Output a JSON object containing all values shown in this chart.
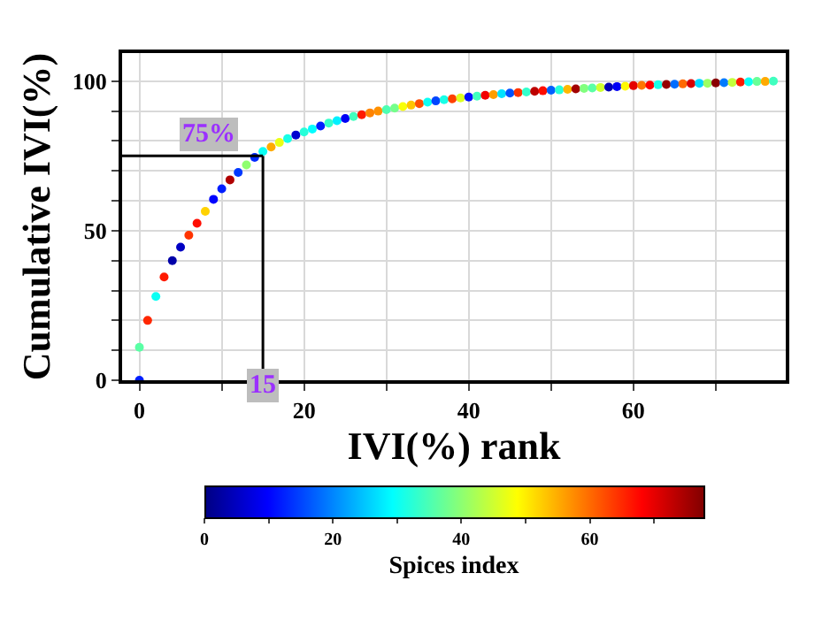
{
  "chart_data": {
    "type": "scatter",
    "xlabel": "IVI(%) rank",
    "ylabel": "Cumulative IVI(%)",
    "clabel": "Spices index",
    "x": [
      0,
      0,
      1,
      2,
      3,
      4,
      5,
      6,
      7,
      8,
      9,
      10,
      11,
      12,
      13,
      14,
      15,
      16,
      17,
      18,
      19,
      20,
      21,
      22,
      23,
      24,
      25,
      26,
      27,
      28,
      29,
      30,
      31,
      32,
      33,
      34,
      35,
      36,
      37,
      38,
      39,
      40,
      41,
      42,
      43,
      44,
      45,
      46,
      47,
      48,
      49,
      50,
      51,
      52,
      53,
      54,
      55,
      56,
      57,
      58,
      59,
      60,
      61,
      62,
      63,
      64,
      65,
      66,
      67,
      68,
      69,
      70,
      71,
      72,
      73,
      74,
      75,
      76,
      77
    ],
    "values": [
      0,
      11,
      20,
      28,
      34.5,
      40,
      44.5,
      48.5,
      52.5,
      56.5,
      60.5,
      64,
      67,
      69.5,
      72,
      74.5,
      76.5,
      78,
      79.5,
      80.8,
      82,
      83,
      84,
      85,
      86,
      86.8,
      87.5,
      88.2,
      88.8,
      89.4,
      90,
      90.5,
      91,
      91.5,
      92,
      92.5,
      93,
      93.4,
      93.8,
      94.1,
      94.4,
      94.7,
      95,
      95.3,
      95.5,
      95.8,
      96,
      96.2,
      96.4,
      96.6,
      96.8,
      97,
      97.1,
      97.3,
      97.4,
      97.6,
      97.7,
      97.9,
      98,
      98.2,
      98.3,
      98.5,
      98.6,
      98.7,
      98.8,
      98.9,
      99,
      99.1,
      99.2,
      99.3,
      99.3,
      99.4,
      99.5,
      99.6,
      99.7,
      99.8,
      99.9,
      99.9,
      100
    ],
    "cvalues": [
      12,
      36,
      65,
      30,
      66,
      3,
      5,
      64,
      67,
      52,
      10,
      12,
      74,
      14,
      40,
      13,
      30,
      55,
      47,
      31,
      6,
      32,
      29,
      12,
      33,
      28,
      9,
      34,
      66,
      58,
      57,
      35,
      38,
      48,
      53,
      62,
      30,
      15,
      31,
      63,
      46,
      11,
      34,
      69,
      56,
      27,
      16,
      64,
      33,
      73,
      67,
      17,
      32,
      54,
      75,
      39,
      36,
      45,
      4,
      9,
      49,
      70,
      59,
      68,
      31,
      76,
      18,
      60,
      71,
      26,
      41,
      77,
      19,
      44,
      66,
      30,
      37,
      55,
      34
    ],
    "clim": [
      0,
      77.7
    ],
    "cticks": [
      0,
      {
        "value": 10,
        "label": null
      },
      20,
      {
        "value": 30,
        "label": null
      },
      40,
      {
        "value": 50,
        "label": null
      },
      60,
      {
        "value": 70,
        "label": null
      }
    ],
    "xlim": [
      -2.1,
      78.5
    ],
    "xticks": [
      0,
      {
        "value": 10,
        "label": null
      },
      20,
      {
        "value": 30,
        "label": null
      },
      40,
      {
        "value": 50,
        "label": null
      },
      60,
      {
        "value": 70,
        "label": null
      }
    ],
    "ylim": [
      0,
      109.4
    ],
    "yticks": [
      0,
      {
        "value": 10,
        "label": null
      },
      {
        "value": 20,
        "label": null
      },
      {
        "value": 30,
        "label": null
      },
      {
        "value": 40,
        "label": null
      },
      50,
      {
        "value": 60,
        "label": null
      },
      {
        "value": 70,
        "label": null
      },
      {
        "value": 80,
        "label": null
      },
      {
        "value": 90,
        "label": null
      },
      100
    ],
    "ref_lines": [
      {
        "axis": "y",
        "value": 75,
        "label": "75%",
        "color": "#000000"
      },
      {
        "axis": "x",
        "value": 15,
        "label": "15",
        "color": "#000000"
      }
    ],
    "grid": true,
    "marker": "circle",
    "legend": false
  }
}
